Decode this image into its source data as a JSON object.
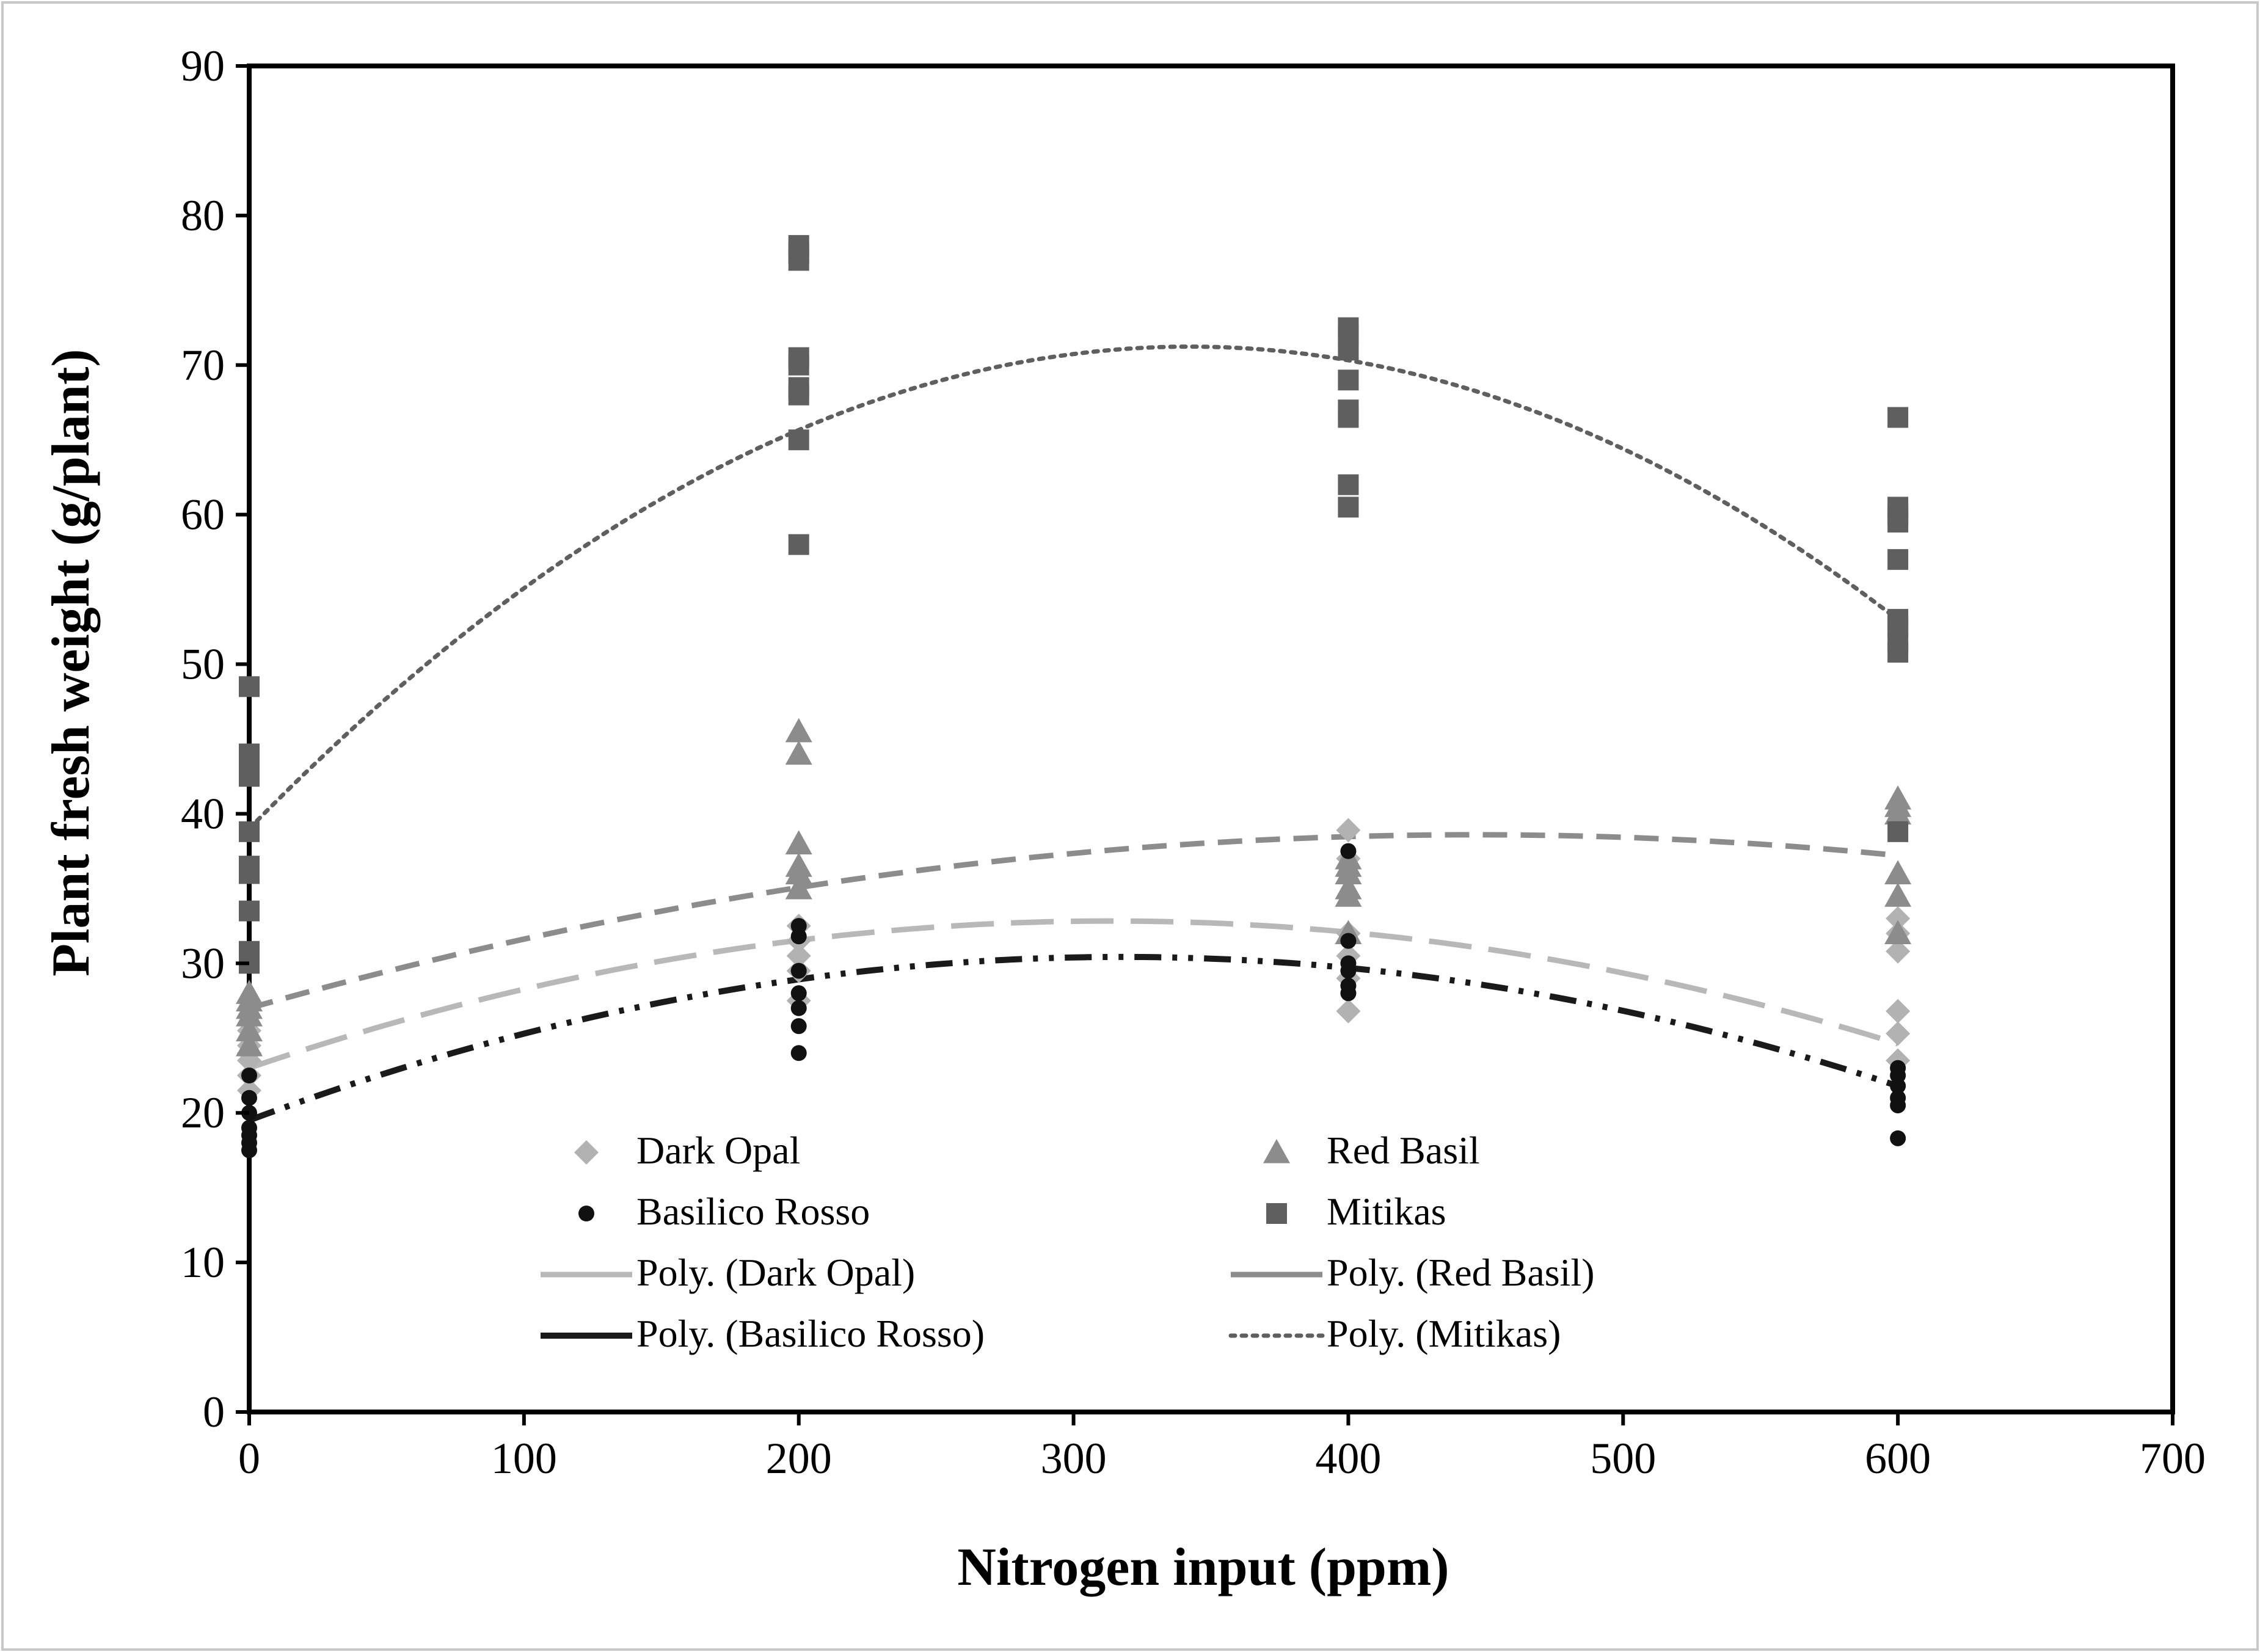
{
  "chart_data": {
    "type": "scatter",
    "title": "",
    "xlabel": "Nitrogen input (ppm)",
    "ylabel": "Plant fresh weight (g/plant)",
    "xlim": [
      0,
      700
    ],
    "ylim": [
      0,
      90
    ],
    "xticks": [
      0,
      100,
      200,
      300,
      400,
      500,
      600,
      700
    ],
    "yticks": [
      0,
      10,
      20,
      30,
      40,
      50,
      60,
      70,
      80,
      90
    ],
    "grid": false,
    "legend_position": "bottom-center",
    "series": [
      {
        "name": "Dark Opal",
        "marker": "diamond",
        "color": "#b2b2b2",
        "points": [
          [
            0,
            21.5
          ],
          [
            0,
            22.5
          ],
          [
            0,
            23.5
          ],
          [
            0,
            24.0
          ],
          [
            0,
            24.5
          ],
          [
            0,
            25.5
          ],
          [
            200,
            27.5
          ],
          [
            200,
            29.5
          ],
          [
            200,
            30.5
          ],
          [
            200,
            31.5
          ],
          [
            200,
            32.5
          ],
          [
            400,
            26.8
          ],
          [
            400,
            29.0
          ],
          [
            400,
            30.5
          ],
          [
            400,
            32.0
          ],
          [
            400,
            37.0
          ],
          [
            400,
            38.9
          ],
          [
            600,
            23.5
          ],
          [
            600,
            25.3
          ],
          [
            600,
            26.8
          ],
          [
            600,
            30.8
          ],
          [
            600,
            32.0
          ],
          [
            600,
            33.0
          ]
        ]
      },
      {
        "name": "Red Basil",
        "marker": "triangle",
        "color": "#8c8c8c",
        "points": [
          [
            0,
            24.5
          ],
          [
            0,
            25.5
          ],
          [
            0,
            26.5
          ],
          [
            0,
            27.0
          ],
          [
            0,
            27.5
          ],
          [
            0,
            28.0
          ],
          [
            200,
            35.0
          ],
          [
            200,
            36.0
          ],
          [
            200,
            36.5
          ],
          [
            200,
            38.0
          ],
          [
            200,
            44.0
          ],
          [
            200,
            45.5
          ],
          [
            400,
            32.0
          ],
          [
            400,
            34.5
          ],
          [
            400,
            35.0
          ],
          [
            400,
            36.0
          ],
          [
            400,
            36.5
          ],
          [
            400,
            37.0
          ],
          [
            600,
            32.0
          ],
          [
            600,
            34.5
          ],
          [
            600,
            36.0
          ],
          [
            600,
            40.0
          ],
          [
            600,
            40.5
          ],
          [
            600,
            41.0
          ]
        ]
      },
      {
        "name": "Basilico Rosso",
        "marker": "circle",
        "color": "#111111",
        "points": [
          [
            0,
            17.5
          ],
          [
            0,
            18.0
          ],
          [
            0,
            18.5
          ],
          [
            0,
            19.0
          ],
          [
            0,
            20.0
          ],
          [
            0,
            21.0
          ],
          [
            0,
            22.5
          ],
          [
            200,
            24.0
          ],
          [
            200,
            25.8
          ],
          [
            200,
            27.0
          ],
          [
            200,
            28.0
          ],
          [
            200,
            29.5
          ],
          [
            200,
            31.8
          ],
          [
            200,
            32.5
          ],
          [
            400,
            28.0
          ],
          [
            400,
            28.5
          ],
          [
            400,
            29.5
          ],
          [
            400,
            30.0
          ],
          [
            400,
            31.5
          ],
          [
            400,
            37.5
          ],
          [
            600,
            18.3
          ],
          [
            600,
            20.5
          ],
          [
            600,
            21.0
          ],
          [
            600,
            21.8
          ],
          [
            600,
            22.5
          ],
          [
            600,
            23.0
          ]
        ]
      },
      {
        "name": "Mitikas",
        "marker": "square",
        "color": "#5f5f5f",
        "points": [
          [
            0,
            30.0
          ],
          [
            0,
            30.8
          ],
          [
            0,
            33.5
          ],
          [
            0,
            36.0
          ],
          [
            0,
            36.5
          ],
          [
            0,
            38.8
          ],
          [
            0,
            42.5
          ],
          [
            0,
            43.5
          ],
          [
            0,
            44.0
          ],
          [
            0,
            48.5
          ],
          [
            200,
            58.0
          ],
          [
            200,
            65.0
          ],
          [
            200,
            68.0
          ],
          [
            200,
            68.5
          ],
          [
            200,
            70.0
          ],
          [
            200,
            70.5
          ],
          [
            200,
            77.0
          ],
          [
            200,
            77.5
          ],
          [
            200,
            78.0
          ],
          [
            400,
            60.5
          ],
          [
            400,
            62.0
          ],
          [
            400,
            66.5
          ],
          [
            400,
            67.0
          ],
          [
            400,
            69.0
          ],
          [
            400,
            71.0
          ],
          [
            400,
            72.0
          ],
          [
            400,
            72.5
          ],
          [
            600,
            38.8
          ],
          [
            600,
            50.8
          ],
          [
            600,
            51.5
          ],
          [
            600,
            52.5
          ],
          [
            600,
            53.0
          ],
          [
            600,
            57.0
          ],
          [
            600,
            59.5
          ],
          [
            600,
            60.0
          ],
          [
            600,
            60.5
          ],
          [
            600,
            66.5
          ]
        ]
      }
    ],
    "trendlines": [
      {
        "name": "Poly. (Dark Opal)",
        "color": "#b8b8b8",
        "dash": "long-dash",
        "coefficients": [
          23.0,
          0.0627,
          -0.0001
        ]
      },
      {
        "name": "Poly. (Red Basil)",
        "color": "#8c8c8c",
        "dash": "dash",
        "coefficients": [
          27.0,
          0.052,
          -5.83e-05
        ]
      },
      {
        "name": "Poly. (Basilico Rosso)",
        "color": "#1a1a1a",
        "dash": "dash-dot-dot",
        "coefficients": [
          19.5,
          0.0688,
          -0.0001083
        ]
      },
      {
        "name": "Poly. (Mitikas)",
        "color": "#5f5f5f",
        "dash": "dot",
        "coefficients": [
          39.0,
          0.1883,
          -0.000275
        ]
      }
    ],
    "legend": {
      "entries": [
        {
          "label": "Dark Opal",
          "kind": "marker",
          "ref": "Dark Opal"
        },
        {
          "label": "Red Basil",
          "kind": "marker",
          "ref": "Red Basil"
        },
        {
          "label": "Basilico Rosso",
          "kind": "marker",
          "ref": "Basilico Rosso"
        },
        {
          "label": "Mitikas",
          "kind": "marker",
          "ref": "Mitikas"
        },
        {
          "label": "Poly. (Dark Opal)",
          "kind": "line",
          "ref": "Poly. (Dark Opal)"
        },
        {
          "label": "Poly. (Red Basil)",
          "kind": "line",
          "ref": "Poly. (Red Basil)"
        },
        {
          "label": "Poly. (Basilico Rosso)",
          "kind": "line",
          "ref": "Poly. (Basilico Rosso)"
        },
        {
          "label": "Poly. (Mitikas)",
          "kind": "line",
          "ref": "Poly. (Mitikas)"
        }
      ]
    }
  }
}
